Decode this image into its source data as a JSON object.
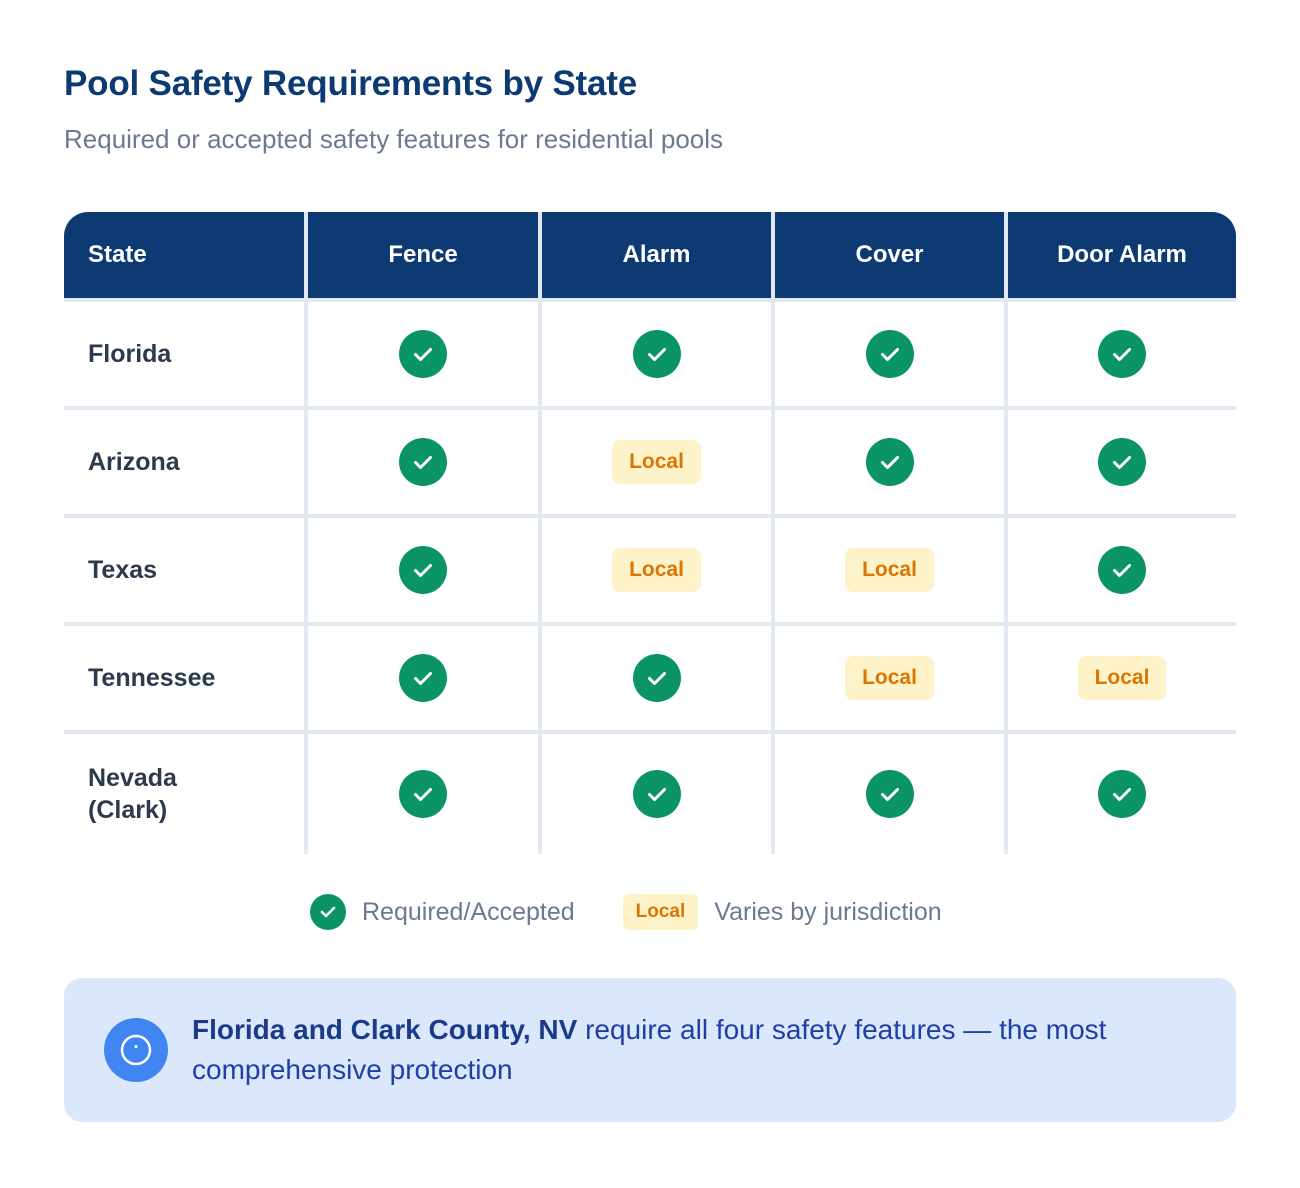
{
  "header": {
    "title": "Pool Safety Requirements by State",
    "subtitle": "Required or accepted safety features for residential pools"
  },
  "table": {
    "columns": [
      "State",
      "Fence",
      "Alarm",
      "Cover",
      "Door Alarm"
    ],
    "rows": [
      {
        "state": "Florida",
        "values": [
          "check",
          "check",
          "check",
          "check"
        ]
      },
      {
        "state": "Arizona",
        "values": [
          "check",
          "Local",
          "check",
          "check"
        ]
      },
      {
        "state": "Texas",
        "values": [
          "check",
          "Local",
          "Local",
          "check"
        ]
      },
      {
        "state": "Tennessee",
        "values": [
          "check",
          "check",
          "Local",
          "Local"
        ]
      },
      {
        "state": "Nevada (Clark)",
        "values": [
          "check",
          "check",
          "check",
          "check"
        ]
      }
    ]
  },
  "legend": {
    "required_label": "Required/Accepted",
    "local_badge": "Local",
    "local_label": "Varies by jurisdiction"
  },
  "callout": {
    "icon": "info-circle-icon",
    "bold": "Florida and Clark County, NV",
    "text": " require all four safety features — the most comprehensive protection"
  },
  "colors": {
    "header_bg": "#0d3a73",
    "check_green": "#0a9468",
    "local_bg": "#fef2c8",
    "local_text": "#d97706",
    "callout_bg": "#dbe8fc",
    "callout_icon": "#3f86f2"
  }
}
